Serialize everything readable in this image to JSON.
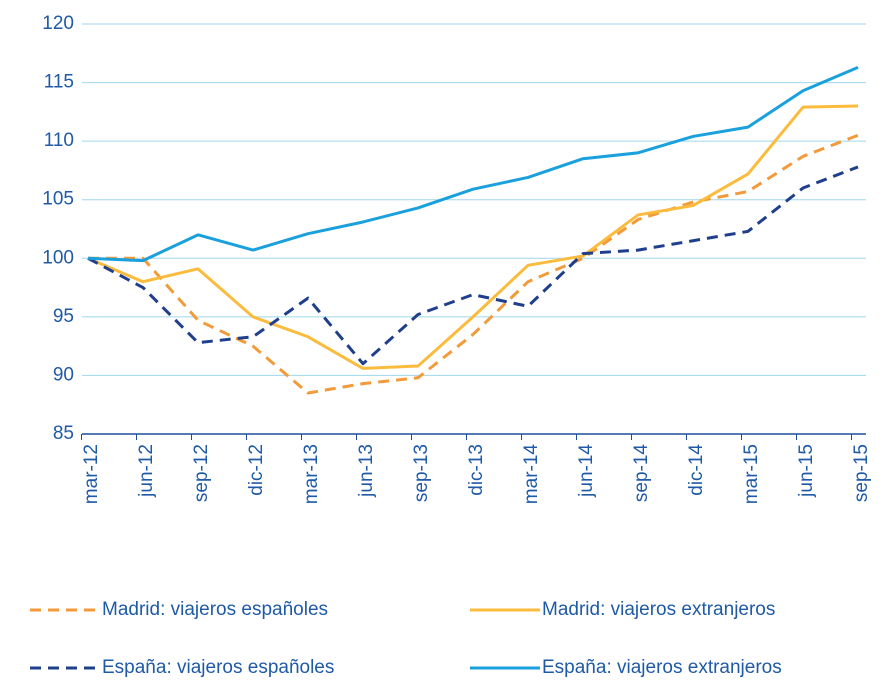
{
  "chart_data": {
    "type": "line",
    "categories": [
      "mar-12",
      "jun-12",
      "sep-12",
      "dic-12",
      "mar-13",
      "jun-13",
      "sep-13",
      "dic-13",
      "mar-14",
      "jun-14",
      "sep-14",
      "dic-14",
      "mar-15",
      "jun-15",
      "sep-15"
    ],
    "series": [
      {
        "name": "Madrid: viajeros españoles",
        "color": "#f39a3a",
        "dashed": true,
        "values": [
          100,
          100,
          94.7,
          92.5,
          88.5,
          89.3,
          89.8,
          93.5,
          98,
          100,
          103.3,
          104.8,
          105.7,
          108.7,
          110.5
        ]
      },
      {
        "name": "Madrid: viajeros extranjeros",
        "color": "#fbbb3c",
        "dashed": false,
        "values": [
          100,
          98,
          99.1,
          95,
          93.3,
          90.6,
          90.8,
          95,
          99.4,
          100.2,
          103.7,
          104.5,
          107.2,
          112.9,
          113
        ]
      },
      {
        "name": "España: viajeros españoles",
        "color": "#1f3f8c",
        "dashed": true,
        "values": [
          100,
          97.5,
          92.8,
          93.3,
          96.6,
          91,
          95.2,
          96.9,
          95.9,
          100.4,
          100.7,
          101.5,
          102.3,
          106,
          107.8
        ]
      },
      {
        "name": "España: viajeros extranjeros",
        "color": "#1aa0dc",
        "dashed": false,
        "values": [
          100,
          99.8,
          102,
          100.7,
          102.1,
          103.1,
          104.3,
          105.9,
          106.9,
          108.5,
          109,
          110.4,
          111.2,
          114.3,
          116.3
        ]
      }
    ],
    "ylim": [
      85,
      120
    ],
    "yticks": [
      85,
      90,
      95,
      100,
      105,
      110,
      115,
      120
    ],
    "grid": true
  }
}
